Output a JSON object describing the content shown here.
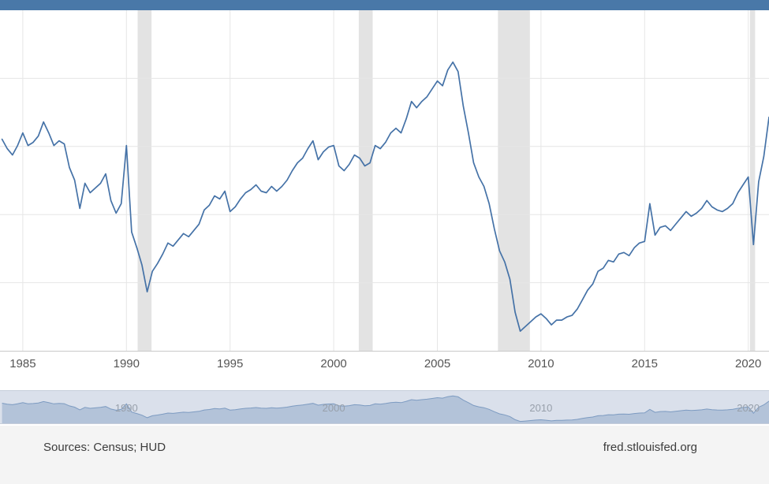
{
  "header": {
    "strip_color": "#4978a8"
  },
  "chart": {
    "x_ticks": [
      "1985",
      "1990",
      "1995",
      "2000",
      "2005",
      "2010",
      "2015",
      "2020"
    ],
    "line_color": "#4572a7",
    "recession_color": "#e3e3e3",
    "gridline_color": "#e6e6e6",
    "axis_line_color": "#c9c9c9"
  },
  "brush": {
    "labels": [
      "1990",
      "2000",
      "2010",
      "2020"
    ],
    "overlay_color": "#dae0eb",
    "area_fill": "#b3c3d9",
    "area_line": "#7d9bc1"
  },
  "footer": {
    "sources": "Sources: Census; HUD",
    "site": "fred.stlouisfed.org"
  },
  "chart_data": {
    "type": "line",
    "title": "",
    "xlabel": "",
    "ylabel": "",
    "legend": false,
    "grid": true,
    "x_start": 1984.0,
    "x_step": 0.25,
    "xlim": [
      1983.9,
      2021.0
    ],
    "ylim": [
      395,
      2560
    ],
    "x_tick_years": [
      1985,
      1990,
      1995,
      2000,
      2005,
      2010,
      2015,
      2020
    ],
    "recessions": [
      [
        1990.54,
        1991.21
      ],
      [
        2001.21,
        2001.88
      ],
      [
        2007.92,
        2009.46
      ],
      [
        2020.08,
        2020.33
      ]
    ],
    "values": [
      1740,
      1680,
      1640,
      1700,
      1780,
      1700,
      1720,
      1760,
      1850,
      1780,
      1700,
      1730,
      1710,
      1560,
      1480,
      1300,
      1460,
      1400,
      1430,
      1460,
      1520,
      1350,
      1270,
      1330,
      1700,
      1150,
      1050,
      940,
      770,
      900,
      950,
      1010,
      1080,
      1060,
      1100,
      1140,
      1120,
      1160,
      1200,
      1290,
      1320,
      1380,
      1360,
      1410,
      1280,
      1310,
      1360,
      1400,
      1420,
      1450,
      1410,
      1400,
      1440,
      1410,
      1440,
      1480,
      1540,
      1590,
      1620,
      1680,
      1730,
      1610,
      1660,
      1690,
      1700,
      1570,
      1540,
      1580,
      1640,
      1620,
      1570,
      1590,
      1700,
      1680,
      1720,
      1780,
      1810,
      1780,
      1870,
      1980,
      1940,
      1980,
      2010,
      2060,
      2110,
      2080,
      2180,
      2230,
      2170,
      1950,
      1780,
      1590,
      1500,
      1440,
      1330,
      1170,
      1030,
      960,
      850,
      640,
      520,
      550,
      580,
      610,
      630,
      600,
      560,
      590,
      590,
      610,
      620,
      660,
      720,
      780,
      820,
      900,
      920,
      970,
      960,
      1010,
      1020,
      1000,
      1050,
      1080,
      1090,
      1330,
      1130,
      1180,
      1190,
      1160,
      1200,
      1240,
      1280,
      1250,
      1270,
      1300,
      1350,
      1310,
      1290,
      1280,
      1300,
      1330,
      1400,
      1450,
      1500,
      1070,
      1470,
      1630,
      1880
    ]
  }
}
